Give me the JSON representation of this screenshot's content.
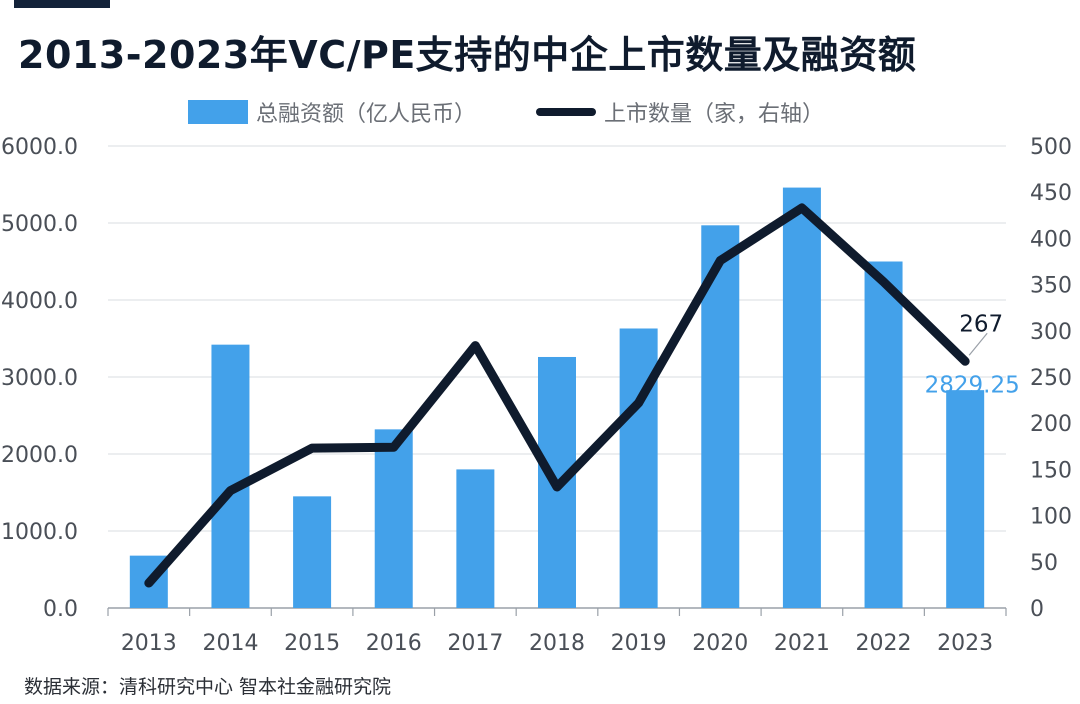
{
  "title": "2013-2023年VC/PE支持的中企上市数量及融资额",
  "legend": {
    "bar_label": "总融资额（亿人民币）",
    "line_label": "上市数量（家，右轴）"
  },
  "footer": "数据来源：清科研究中心  智本社金融研究院",
  "colors": {
    "bar": "#43a1ea",
    "line": "#0f1b2d",
    "bar_label": "#43a1ea",
    "line_label": "#0f1b2d",
    "axis_text": "#4a4f57"
  },
  "chart_data": {
    "type": "bar",
    "categories": [
      "2013",
      "2014",
      "2015",
      "2016",
      "2017",
      "2018",
      "2019",
      "2020",
      "2021",
      "2022",
      "2023"
    ],
    "series": [
      {
        "name": "总融资额（亿人民币）",
        "type": "bar",
        "axis": "left",
        "values": [
          680,
          3420,
          1450,
          2320,
          1800,
          3260,
          3630,
          4970,
          5460,
          4500,
          2829.25
        ]
      },
      {
        "name": "上市数量（家，右轴）",
        "type": "line",
        "axis": "right",
        "values": [
          27,
          127,
          173,
          174,
          284,
          131,
          222,
          376,
          433,
          353,
          267
        ]
      }
    ],
    "y_left": {
      "ylim": [
        0,
        6000
      ],
      "ticks": [
        "0.0",
        "1000.0",
        "2000.0",
        "3000.0",
        "4000.0",
        "5000.0",
        "6000.0"
      ],
      "tick_values": [
        0,
        1000,
        2000,
        3000,
        4000,
        5000,
        6000
      ]
    },
    "y_right": {
      "ylim": [
        0,
        500
      ],
      "ticks": [
        "0",
        "50",
        "100",
        "150",
        "200",
        "250",
        "300",
        "350",
        "400",
        "450",
        "500"
      ],
      "tick_values": [
        0,
        50,
        100,
        150,
        200,
        250,
        300,
        350,
        400,
        450,
        500
      ]
    },
    "annotations": [
      {
        "series": "line",
        "index": 10,
        "text": "267"
      },
      {
        "series": "bar",
        "index": 10,
        "text": "2829.25"
      }
    ],
    "grid": true
  }
}
